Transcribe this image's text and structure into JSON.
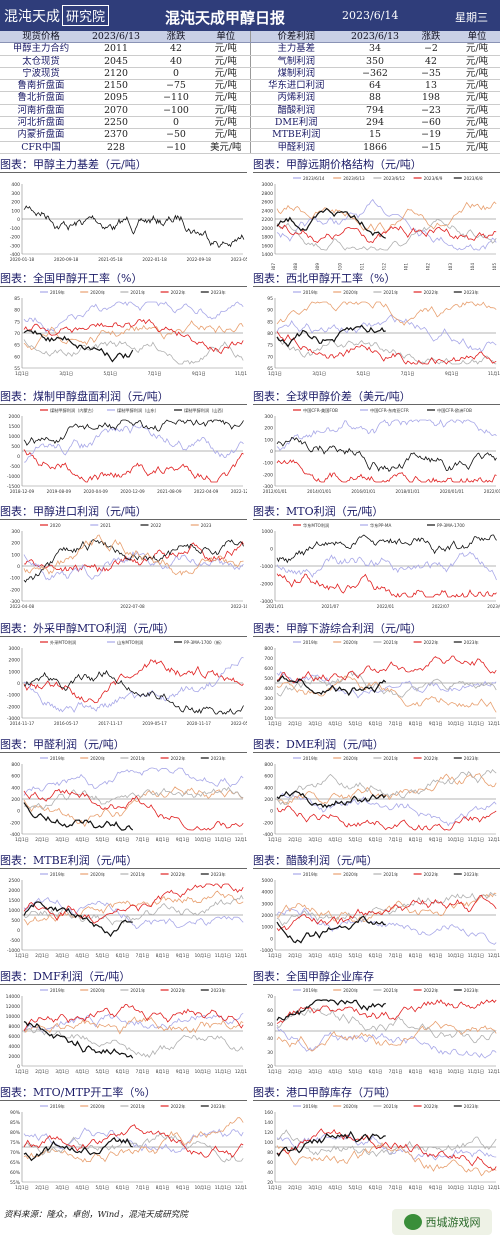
{
  "header": {
    "logo_text": "混沌天成",
    "logo_sub": "研究院",
    "title": "混沌天成甲醇日报",
    "date": "2023/6/14",
    "weekday": "星期三"
  },
  "spot_table": {
    "columns": [
      "现货价格",
      "2023/6/13",
      "涨跌",
      "单位",
      "价差利润",
      "2023/6/13",
      "涨跌",
      "单位"
    ],
    "rows": [
      [
        "甲醇主力合约",
        "2011",
        "42",
        "元/吨",
        "主力基差",
        "34",
        "−2",
        "元/吨"
      ],
      [
        "太仓现货",
        "2045",
        "40",
        "元/吨",
        "气制利润",
        "350",
        "42",
        "元/吨"
      ],
      [
        "宁波现货",
        "2120",
        "0",
        "元/吨",
        "煤制利润",
        "−362",
        "−35",
        "元/吨"
      ],
      [
        "鲁南折盘面",
        "2150",
        "−75",
        "元/吨",
        "华东进口利润",
        "64",
        "13",
        "元/吨"
      ],
      [
        "鲁北折盘面",
        "2095",
        "−110",
        "元/吨",
        "丙烯利润",
        "88",
        "198",
        "元/吨"
      ],
      [
        "河南折盘面",
        "2070",
        "−100",
        "元/吨",
        "醋酸利润",
        "794",
        "−23",
        "元/吨"
      ],
      [
        "河北折盘面",
        "2250",
        "0",
        "元/吨",
        "DME利润",
        "294",
        "−60",
        "元/吨"
      ],
      [
        "内蒙折盘面",
        "2370",
        "−50",
        "元/吨",
        "MTBE利润",
        "15",
        "−19",
        "元/吨"
      ],
      [
        "CFR中国",
        "228",
        "−10",
        "美元/吨",
        "甲醛利润",
        "1866",
        "−15",
        "元/吨"
      ]
    ]
  },
  "panels": [
    {
      "title": "图表：甲醇主力基差（元/吨）",
      "yticks": [
        "400",
        "300",
        "200",
        "100",
        "0",
        "-100",
        "-200",
        "-300",
        "-400"
      ],
      "xticks": [
        "2020-01-18",
        "2020-09-18",
        "2021-05-18",
        "2022-01-18",
        "2022-09-18",
        "2023-05-18"
      ],
      "legend": []
    },
    {
      "title": "图表：甲醇远期价格结构（元/吨）",
      "yticks": [
        "3000",
        "2800",
        "2600",
        "2400",
        "2200",
        "2000",
        "1800",
        "1600",
        "1400"
      ],
      "xticks": [
        "MA2307",
        "MA2308",
        "MA2309",
        "MA2310",
        "MA2311",
        "MA2312",
        "MA2401",
        "MA2402",
        "MA2403",
        "MA2404",
        "MA2405"
      ],
      "legend": [
        "2023/6/14",
        "2023/6/13",
        "2023/6/12",
        "2023/6/9",
        "2023/6/8"
      ]
    },
    {
      "title": "图表：全国甲醇开工率（%）",
      "yticks": [
        "85",
        "80",
        "75",
        "70",
        "65",
        "60",
        "55"
      ],
      "xticks": [
        "1月1日",
        "3月1日",
        "5月1日",
        "7月1日",
        "9月1日",
        "11月1日"
      ],
      "legend": [
        "2019年",
        "2020年",
        "2021年",
        "2022年",
        "2023年"
      ]
    },
    {
      "title": "图表：西北甲醇开工率（%）",
      "yticks": [
        "95",
        "90",
        "85",
        "80",
        "75",
        "70",
        "65"
      ],
      "xticks": [
        "1月1日",
        "3月1日",
        "5月1日",
        "7月1日",
        "9月1日",
        "11月1日"
      ],
      "legend": [
        "2019年",
        "2020年",
        "2021年",
        "2022年",
        "2023年"
      ]
    },
    {
      "title": "图表：煤制甲醇盘面利润（元/吨）",
      "yticks": [
        "2000",
        "1500",
        "1000",
        "500",
        "0",
        "-500",
        "-1000",
        "-1500"
      ],
      "xticks": [
        "2018-12-09",
        "2019-08-09",
        "2020-04-09",
        "2020-12-09",
        "2021-08-09",
        "2022-04-09",
        "2022-12-09"
      ],
      "legend": [
        "煤制甲醇利润（内蒙古）",
        "煤制甲醇利润（山东）",
        "煤制甲醇利润（山西）"
      ]
    },
    {
      "title": "图表：全球甲醇价差（美元/吨）",
      "yticks": [
        "300",
        "200",
        "100",
        "0",
        "-100",
        "-200",
        "-300"
      ],
      "xticks": [
        "2012/01/01",
        "2014/01/01",
        "2016/01/01",
        "2018/01/01",
        "2020/01/01",
        "2022/01/01"
      ],
      "legend": [
        "中国CFR-美国FOB",
        "中国CFR-东南亚CFR",
        "中国CFR-欧洲FOB"
      ]
    },
    {
      "title": "图表：甲醇进口利润（元/吨）",
      "yticks": [
        "300",
        "200",
        "100",
        "0",
        "-100",
        "-200",
        "-300"
      ],
      "xticks": [
        "2022-04-08",
        "2022-07-08",
        "2022-10-08"
      ],
      "legend": [
        "2020",
        "2021",
        "2022",
        "2023"
      ]
    },
    {
      "title": "图表：MTO利润（元/吨）",
      "yticks": [
        "1000",
        "0",
        "-1000",
        "-2000",
        "-3000"
      ],
      "xticks": [
        "2021/01",
        "2021/07",
        "2022/01",
        "2022/07",
        "2023/01"
      ],
      "legend": [
        "华东MTO利润",
        "华东PP-MA",
        "PP-3MA-1700"
      ]
    },
    {
      "title": "图表：外采甲醇MTO利润（元/吨）",
      "yticks": [
        "3000",
        "2000",
        "1000",
        "0",
        "-1000",
        "-2000",
        "-3000"
      ],
      "xticks": [
        "2014-11-17",
        "2016-05-17",
        "2017-11-17",
        "2019-05-17",
        "2020-11-17",
        "2022-05-17"
      ],
      "legend": [
        "外采MTO利润",
        "山东MTO利润",
        "PP-3MA-1700（新）"
      ]
    },
    {
      "title": "图表：甲醇下游综合利润（元/吨）",
      "yticks": [
        "800",
        "700",
        "600",
        "500",
        "400",
        "300",
        "200",
        "100"
      ],
      "xticks": [
        "1月1日",
        "2月1日",
        "3月1日",
        "4月1日",
        "5月1日",
        "6月1日",
        "7月1日",
        "8月1日",
        "9月1日",
        "10月1日",
        "11月1日",
        "12月1日"
      ],
      "legend": [
        "2019年",
        "2020年",
        "2021年",
        "2022年",
        "2023年"
      ]
    },
    {
      "title": "图表：甲醛利润（元/吨）",
      "yticks": [
        "800",
        "600",
        "400",
        "200",
        "0",
        "-200",
        "-400"
      ],
      "xticks": [
        "1月1日",
        "2月1日",
        "3月1日",
        "4月1日",
        "5月1日",
        "6月1日",
        "7月1日",
        "8月1日",
        "9月1日",
        "10月1日",
        "11月1日",
        "12月1日"
      ],
      "legend": [
        "2019年",
        "2020年",
        "2021年",
        "2022年",
        "2023年"
      ]
    },
    {
      "title": "图表：DME利润（元/吨）",
      "yticks": [
        "800",
        "600",
        "400",
        "200",
        "0",
        "-200",
        "-400"
      ],
      "xticks": [
        "1月1日",
        "2月1日",
        "3月1日",
        "4月1日",
        "5月1日",
        "6月1日",
        "7月1日",
        "8月1日",
        "9月1日",
        "10月1日",
        "11月1日",
        "12月1日"
      ],
      "legend": [
        "2019年",
        "2020年",
        "2021年",
        "2022年",
        "2023年"
      ]
    },
    {
      "title": "图表：MTBE利润（元/吨）",
      "yticks": [
        "2500",
        "2000",
        "1500",
        "1000",
        "500",
        "0",
        "-500",
        "-1000"
      ],
      "xticks": [
        "1月1日",
        "2月1日",
        "3月1日",
        "4月1日",
        "5月1日",
        "6月1日",
        "7月1日",
        "8月1日",
        "9月1日",
        "10月1日",
        "11月1日",
        "12月1日"
      ],
      "legend": [
        "2019年",
        "2020年",
        "2021年",
        "2022年",
        "2023年"
      ]
    },
    {
      "title": "图表：醋酸利润（元/吨）",
      "yticks": [
        "5000",
        "4000",
        "3000",
        "2000",
        "1000",
        "0",
        "-1000"
      ],
      "xticks": [
        "1月1日",
        "2月1日",
        "3月1日",
        "4月1日",
        "5月1日",
        "6月1日",
        "7月1日",
        "8月1日",
        "9月1日",
        "10月1日",
        "11月1日",
        "12月1日"
      ],
      "legend": [
        "2019年",
        "2020年",
        "2021年",
        "2022年",
        "2023年"
      ]
    },
    {
      "title": "图表：DMF利润（元/吨）",
      "yticks": [
        "14000",
        "12000",
        "10000",
        "8000",
        "6000",
        "4000",
        "2000",
        "0"
      ],
      "xticks": [
        "1月1日",
        "2月1日",
        "3月1日",
        "4月1日",
        "5月1日",
        "6月1日",
        "7月1日",
        "8月1日",
        "9月1日",
        "10月1日",
        "11月1日",
        "12月1日"
      ],
      "legend": [
        "2019年",
        "2020年",
        "2021年",
        "2022年",
        "2023年"
      ]
    },
    {
      "title": "图表：全国甲醇企业库存",
      "yticks": [
        "70",
        "60",
        "50",
        "40",
        "30",
        "20"
      ],
      "xticks": [
        "1月1日",
        "2月1日",
        "3月1日",
        "4月1日",
        "5月1日",
        "6月1日",
        "7月1日",
        "8月1日",
        "9月1日",
        "10月1日",
        "11月1日",
        "12月1日"
      ],
      "legend": [
        "2019年",
        "2020年",
        "2021年",
        "2022年",
        "2023年"
      ]
    },
    {
      "title": "图表：MTO/MTP开工率（%）",
      "yticks": [
        "90%",
        "85%",
        "80%",
        "75%",
        "70%",
        "65%",
        "60%",
        "55%"
      ],
      "xticks": [
        "1月1日",
        "2月1日",
        "3月1日",
        "4月1日",
        "5月1日",
        "6月1日",
        "7月1日",
        "8月1日",
        "9月1日",
        "10月1日",
        "11月1日",
        "12月1日"
      ],
      "legend": [
        "2019年",
        "2020年",
        "2021年",
        "2022年",
        "2023年"
      ]
    },
    {
      "title": "图表：港口甲醇库存（万吨）",
      "yticks": [
        "160",
        "140",
        "120",
        "100",
        "80",
        "60",
        "40",
        "20"
      ],
      "xticks": [
        "1月1日",
        "2月1日",
        "3月1日",
        "4月1日",
        "5月1日",
        "6月1日",
        "7月1日",
        "8月1日",
        "9月1日",
        "10月1日",
        "11月1日",
        "12月1日"
      ],
      "legend": [
        "2019年",
        "2020年",
        "2021年",
        "2022年",
        "2023年"
      ]
    }
  ],
  "series_colors": [
    "#a8a8e8",
    "#e8a070",
    "#b0b0b0",
    "#e02020",
    "#111111"
  ],
  "footer": {
    "source": "资料来源：隆众，卓创，Wind，混沌天成研究院",
    "watermark": "西城游戏网"
  }
}
